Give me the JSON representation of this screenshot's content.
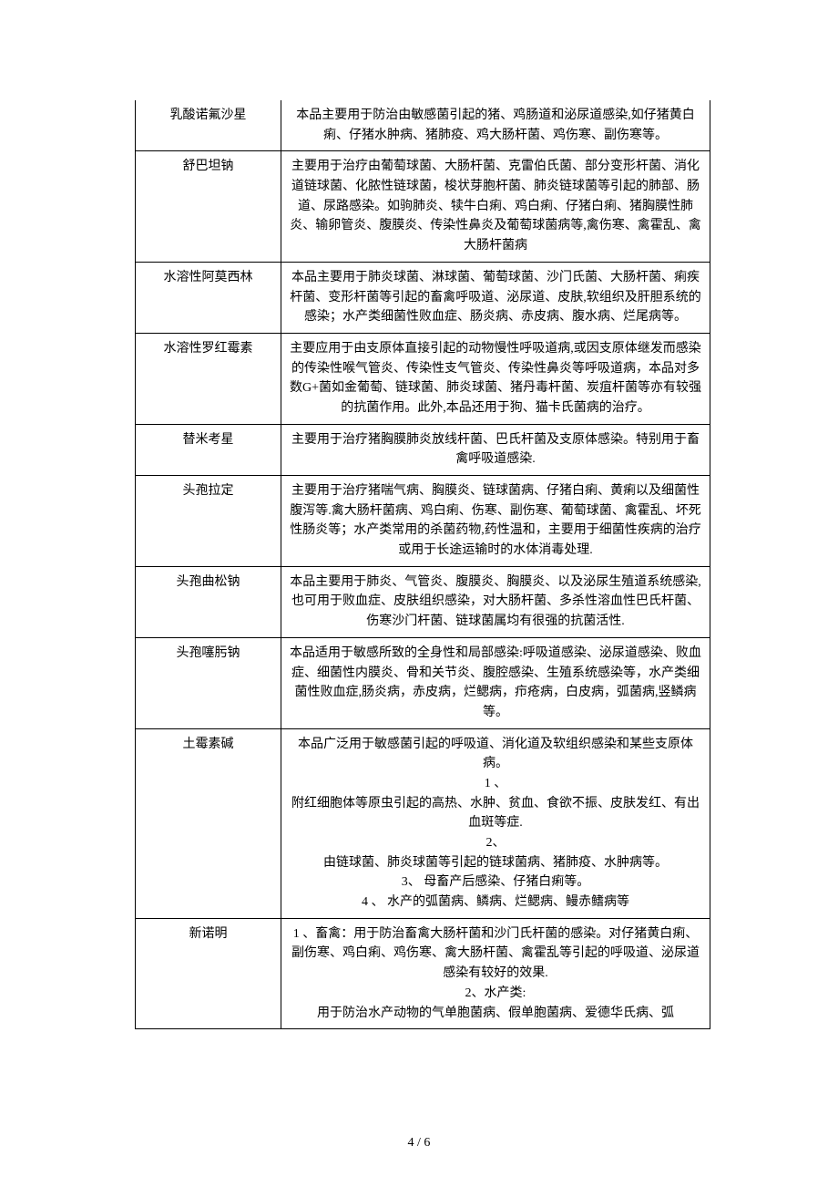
{
  "table": {
    "rows": [
      {
        "name": "乳酸诺氟沙星",
        "desc": "本品主要用于防治由敏感菌引起的猪、鸡肠道和泌尿道感染,如仔猪黄白痢、仔猪水肿病、猪肺疫、鸡大肠杆菌、鸡伤寒、副伤寒等。"
      },
      {
        "name": "舒巴坦钠",
        "desc": "主要用于治疗由葡萄球菌、大肠杆菌、克雷伯氏菌、部分变形杆菌、消化道链球菌、化脓性链球菌，梭状芽胞杆菌、肺炎链球菌等引起的肺部、肠道、尿路感染。如驹肺炎、犊牛白痢、鸡白痢、仔猪白痢、猪胸膜性肺炎、输卵管炎、腹膜炎、传染性鼻炎及葡萄球菌病等,禽伤寒、禽霍乱、禽大肠杆菌病"
      },
      {
        "name": "水溶性阿莫西林",
        "desc": "本品主要用于肺炎球菌、淋球菌、葡萄球菌、沙门氏菌、大肠杆菌、痢疾杆菌、变形杆菌等引起的畜禽呼吸道、泌尿道、皮肤,软组织及肝胆系统的感染；水产类细菌性败血症、肠炎病、赤皮病、腹水病、烂尾病等。"
      },
      {
        "name": "水溶性罗红霉素",
        "desc": "主要应用于由支原体直接引起的动物慢性呼吸道病,或因支原体继发而感染的传染性喉气管炎、传染性支气管炎、传染性鼻炎等呼吸道病，本品对多数G+菌如金葡萄、链球菌、肺炎球菌、猪丹毒杆菌、炭疽杆菌等亦有较强的抗菌作用。此外,本品还用于狗、猫卡氏菌病的治疗。"
      },
      {
        "name": "替米考星",
        "desc": "主要用于治疗猪胸膜肺炎放线杆菌、巴氏杆菌及支原体感染。特别用于畜禽呼吸道感染."
      },
      {
        "name": "头孢拉定",
        "desc": "主要用于治疗猪喘气病、胸膜炎、链球菌病、仔猪白痢、黄痢以及细菌性腹泻等.禽大肠杆菌病、鸡白痢、伤寒、副伤寒、葡萄球菌、禽霍乱、坏死性肠炎等；水产类常用的杀菌药物,药性温和，主要用于细菌性疾病的治疗或用于长途运输时的水体消毒处理."
      },
      {
        "name": "头孢曲松钠",
        "desc": "本品主要用于肺炎、气管炎、腹膜炎、胸膜炎、以及泌尿生殖道系统感染,也可用于败血症、皮肤组织感染，对大肠杆菌、多杀性溶血性巴氏杆菌、伤寒沙门杆菌、链球菌属均有很强的抗菌活性."
      },
      {
        "name": "头孢噻肟钠",
        "desc": "本品适用于敏感所致的全身性和局部感染:呼吸道感染、泌尿道感染、败血症、细菌性内膜炎、骨和关节炎、腹腔感染、生殖系统感染等，水产类细菌性败血症,肠炎病，赤皮病，烂鳃病，疖疮病，白皮病，弧菌病,竖鳞病等。"
      },
      {
        "name": "土霉素碱",
        "desc": "本品广泛用于敏感菌引起的呼吸道、消化道及软组织感染和某些支原体病。\n1 、\n附红细胞体等原虫引起的高热、水肿、贫血、食欲不振、皮肤发红、有出血斑等症.\n2、\n由链球菌、肺炎球菌等引起的链球菌病、猪肺疫、水肿病等。\n3、 母畜产后感染、仔猪白痢等。\n4 、 水产的弧菌病、鳞病、烂鳃病、鳗赤鳍病等"
      },
      {
        "name": "新诺明",
        "desc": "1 、畜禽：用于防治畜禽大肠杆菌和沙门氏杆菌的感染。对仔猪黄白痢、副伤寒、鸡白痢、鸡伤寒、禽大肠杆菌、禽霍乱等引起的呼吸道、泌尿道感染有较好的效果.\n2、水产类:\n用于防治水产动物的气单胞菌病、假单胞菌病、爱德华氏病、弧"
      }
    ]
  },
  "footer": {
    "page": "4 / 6"
  },
  "style": {
    "background": "#ffffff",
    "border_color": "#000000",
    "text_color": "#000000",
    "font_size": 14,
    "col_name_width": 160
  }
}
